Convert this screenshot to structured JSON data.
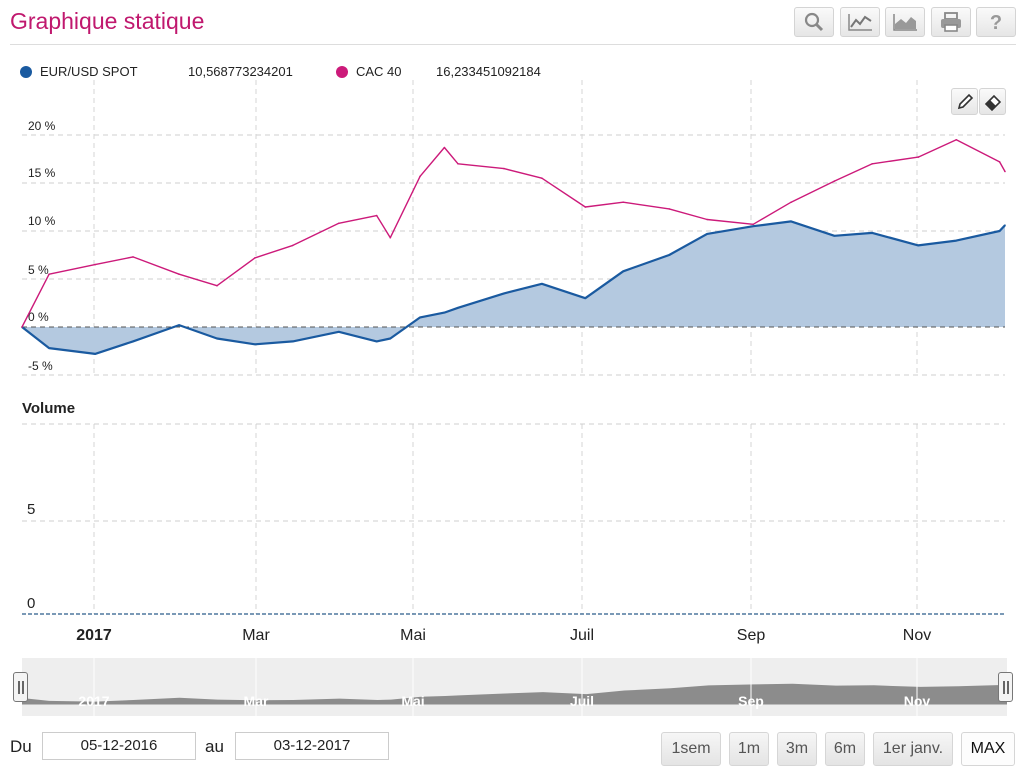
{
  "page": {
    "title": "Graphique statique",
    "toolbar": [
      "search-icon",
      "line-chart-icon",
      "area-chart-icon",
      "print-icon",
      "help-icon"
    ]
  },
  "legend": [
    {
      "name": "EUR/USD SPOT",
      "value": "10,568773234201",
      "color": "#1a5aa0"
    },
    {
      "name": "CAC 40",
      "value": "16,233451092184",
      "color": "#cc1a7a"
    }
  ],
  "chart_data": [
    {
      "type": "line",
      "xlabel": "",
      "ylabel": "",
      "ylim": [
        -5,
        20
      ],
      "yticks": [
        "20 %",
        "15 %",
        "10 %",
        "5 %",
        "0 %",
        "-5 %"
      ],
      "xticks": [
        "2017",
        "Mar",
        "Mai",
        "Juil",
        "Sep",
        "Nov"
      ],
      "x": [
        "05-12-2016",
        "15-12-2016",
        "01-01-2017",
        "15-01-2017",
        "01-02-2017",
        "15-02-2017",
        "01-03-2017",
        "15-03-2017",
        "01-04-2017",
        "15-04-2017",
        "20-04-2017",
        "01-05-2017",
        "10-05-2017",
        "15-05-2017",
        "01-06-2017",
        "15-06-2017",
        "01-07-2017",
        "15-07-2017",
        "01-08-2017",
        "15-08-2017",
        "01-09-2017",
        "15-09-2017",
        "01-10-2017",
        "15-10-2017",
        "01-11-2017",
        "15-11-2017",
        "01-12-2017",
        "03-12-2017"
      ],
      "series": [
        {
          "name": "EUR/USD SPOT",
          "color": "#1a5aa0",
          "values": [
            0,
            -2.2,
            -2.8,
            -1.5,
            0.2,
            -1.2,
            -1.8,
            -1.5,
            -0.5,
            -1.5,
            -1.2,
            1.0,
            1.5,
            2.0,
            3.5,
            4.5,
            3.0,
            5.8,
            7.5,
            9.7,
            10.5,
            11.0,
            9.5,
            9.8,
            8.5,
            9.0,
            10.0,
            10.6
          ]
        },
        {
          "name": "CAC 40",
          "color": "#cc1a7a",
          "values": [
            0,
            5.5,
            6.5,
            7.3,
            5.5,
            4.3,
            7.2,
            8.5,
            10.8,
            11.6,
            9.3,
            15.7,
            18.7,
            17.0,
            16.5,
            15.5,
            12.5,
            13.0,
            12.3,
            11.2,
            10.7,
            13.0,
            15.2,
            17.0,
            17.7,
            19.5,
            17.2,
            16.2
          ]
        }
      ]
    },
    {
      "type": "bar",
      "title": "Volume",
      "ylim": [
        0,
        10
      ],
      "yticks": [
        "5",
        "0"
      ],
      "values": []
    }
  ],
  "navigator": {
    "labels": [
      "2017",
      "Mar",
      "Mai",
      "Juil",
      "Sep",
      "Nov"
    ]
  },
  "date_range": {
    "from_label": "Du",
    "from_value": "05-12-2016",
    "to_label": "au",
    "to_value": "03-12-2017"
  },
  "range_buttons": [
    "1sem",
    "1m",
    "3m",
    "6m",
    "1er janv.",
    "MAX"
  ],
  "active_range": "MAX"
}
